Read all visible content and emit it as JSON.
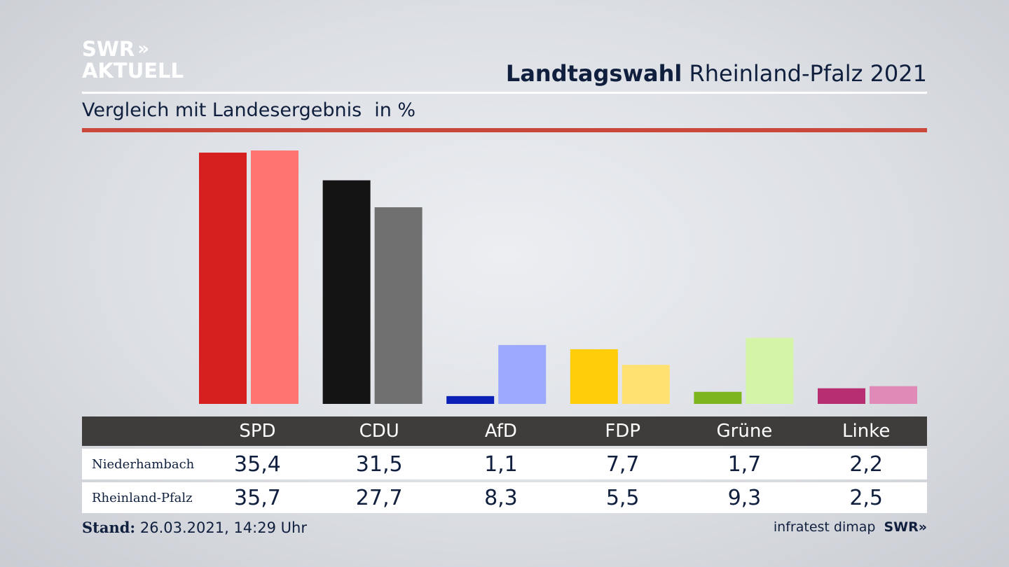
{
  "logo": {
    "line1": "SWR",
    "arrows": "»",
    "line2": "AKTUELL"
  },
  "header": {
    "title_bold": "Landtagswahl",
    "title_rest": " Rheinland-Pfalz 2021"
  },
  "subtitle": {
    "text": "Vergleich mit Landesergebnis",
    "unit": "in %"
  },
  "colors": {
    "accent_rule": "#c9473b",
    "header_bg": "#3e3d3c"
  },
  "chart_data": {
    "type": "bar",
    "categories": [
      "SPD",
      "CDU",
      "AfD",
      "FDP",
      "Grüne",
      "Linke"
    ],
    "series": [
      {
        "name": "Niederhambach",
        "values": [
          35.4,
          31.5,
          1.1,
          7.7,
          1.7,
          2.2
        ],
        "colors": [
          "#d62020",
          "#141414",
          "#0a1fb5",
          "#ffcd0a",
          "#7cb51e",
          "#b72e72"
        ]
      },
      {
        "name": "Rheinland-Pfalz",
        "values": [
          35.7,
          27.7,
          8.3,
          5.5,
          9.3,
          2.5
        ],
        "colors": [
          "#ff7470",
          "#707070",
          "#9ba9ff",
          "#ffe171",
          "#d4f5a8",
          "#e08ab8"
        ]
      }
    ],
    "value_labels": [
      [
        "35,4",
        "31,5",
        "1,1",
        "7,7",
        "1,7",
        "2,2"
      ],
      [
        "35,7",
        "27,7",
        "8,3",
        "5,5",
        "9,3",
        "2,5"
      ]
    ],
    "ylim": [
      0,
      35.7
    ],
    "legend": "table-below"
  },
  "footer": {
    "stand_label": "Stand:",
    "stand_value": " 26.03.2021, 14:29 Uhr",
    "source": "infratest dimap",
    "source_logo": "SWR»"
  }
}
